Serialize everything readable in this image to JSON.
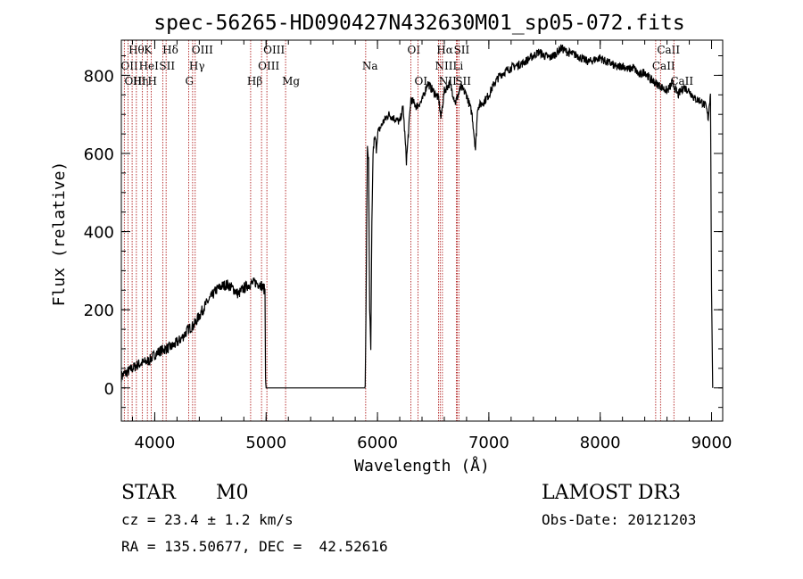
{
  "chart_data": {
    "type": "line",
    "title": "spec-56265-HD090427N432630M01_sp05-072.fits",
    "xlabel": "Wavelength (Å)",
    "ylabel": "Flux (relative)",
    "xlim": [
      3700,
      9100
    ],
    "ylim": [
      -85,
      890
    ],
    "xticks": [
      4000,
      5000,
      6000,
      7000,
      8000,
      9000
    ],
    "yticks": [
      0,
      200,
      400,
      600,
      800
    ],
    "grid": false,
    "series": [
      {
        "x": [
          3700,
          3750,
          3800,
          3850,
          3900,
          3950,
          4000,
          4050,
          4100,
          4150,
          4200,
          4250,
          4300,
          4350,
          4400,
          4450,
          4500,
          4550,
          4600,
          4650,
          4700,
          4750,
          4800,
          4850,
          4900,
          4950,
          4990,
          4995,
          5000,
          5100,
          5200,
          5300,
          5400,
          5500,
          5600,
          5700,
          5800,
          5880,
          5890,
          5900,
          5910,
          5920,
          5930,
          5940,
          5950,
          5960,
          5970,
          5980,
          5990,
          6000,
          6050,
          6100,
          6150,
          6200,
          6230,
          6260,
          6300,
          6350,
          6400,
          6450,
          6500,
          6550,
          6570,
          6600,
          6650,
          6700,
          6750,
          6800,
          6850,
          6880,
          6900,
          6950,
          7000,
          7050,
          7100,
          7150,
          7200,
          7250,
          7300,
          7350,
          7400,
          7450,
          7500,
          7550,
          7600,
          7650,
          7700,
          7750,
          7800,
          7850,
          7900,
          7950,
          8000,
          8050,
          8100,
          8150,
          8200,
          8250,
          8300,
          8350,
          8400,
          8450,
          8500,
          8550,
          8600,
          8650,
          8700,
          8750,
          8800,
          8850,
          8900,
          8950,
          8970,
          8990,
          9000,
          9010
        ],
        "y": [
          30,
          40,
          50,
          60,
          65,
          70,
          85,
          95,
          100,
          105,
          115,
          130,
          150,
          160,
          185,
          210,
          230,
          250,
          260,
          265,
          255,
          240,
          255,
          265,
          270,
          265,
          250,
          40,
          0,
          0,
          0,
          0,
          0,
          0,
          0,
          0,
          0,
          0,
          0,
          300,
          620,
          580,
          200,
          90,
          420,
          600,
          630,
          640,
          610,
          650,
          680,
          700,
          690,
          680,
          720,
          580,
          740,
          720,
          735,
          780,
          760,
          740,
          690,
          760,
          780,
          730,
          770,
          750,
          700,
          610,
          720,
          730,
          750,
          780,
          800,
          810,
          820,
          825,
          830,
          840,
          850,
          860,
          850,
          845,
          855,
          870,
          860,
          855,
          850,
          840,
          835,
          840,
          845,
          835,
          830,
          820,
          825,
          815,
          820,
          800,
          810,
          790,
          780,
          770,
          760,
          780,
          750,
          770,
          760,
          740,
          735,
          720,
          690,
          760,
          250,
          0
        ]
      }
    ],
    "lines": [
      {
        "name": "Hθ",
        "x": 3797,
        "row": 0
      },
      {
        "name": "OII",
        "x": 3727,
        "row": 1
      },
      {
        "name": "OIII",
        "x": 3760,
        "row": 2
      },
      {
        "name": "Hη",
        "x": 3835,
        "row": 2
      },
      {
        "name": "HeI",
        "x": 3889,
        "row": 1
      },
      {
        "name": "K",
        "x": 3934,
        "row": 0
      },
      {
        "name": "H",
        "x": 3968,
        "row": 2
      },
      {
        "name": "SII",
        "x": 4072,
        "row": 1
      },
      {
        "name": "Hδ",
        "x": 4102,
        "row": 0
      },
      {
        "name": "G",
        "x": 4305,
        "row": 2
      },
      {
        "name": "Hγ",
        "x": 4340,
        "row": 1
      },
      {
        "name": "OIII",
        "x": 4363,
        "row": 0
      },
      {
        "name": "Hβ",
        "x": 4861,
        "row": 2
      },
      {
        "name": "OIII",
        "x": 4959,
        "row": 1
      },
      {
        "name": "OIII",
        "x": 5007,
        "row": 0
      },
      {
        "name": "Mg",
        "x": 5175,
        "row": 2
      },
      {
        "name": "Na",
        "x": 5894,
        "row": 1
      },
      {
        "name": "OI",
        "x": 6300,
        "row": 0
      },
      {
        "name": "OI",
        "x": 6364,
        "row": 2
      },
      {
        "name": "NII",
        "x": 6548,
        "row": 1
      },
      {
        "name": "Hα",
        "x": 6563,
        "row": 0
      },
      {
        "name": "NII",
        "x": 6583,
        "row": 2
      },
      {
        "name": "Li",
        "x": 6708,
        "row": 1
      },
      {
        "name": "SII",
        "x": 6717,
        "row": 0
      },
      {
        "name": "SII",
        "x": 6731,
        "row": 2
      },
      {
        "name": "CaII",
        "x": 8498,
        "row": 1
      },
      {
        "name": "CaII",
        "x": 8542,
        "row": 0
      },
      {
        "name": "CaII",
        "x": 8662,
        "row": 2
      }
    ]
  },
  "info": {
    "class": "STAR",
    "subclass": "M0",
    "survey": "LAMOST DR3",
    "cz": "cz = 23.4 ± 1.2 km/s",
    "obs_date": "Obs-Date: 20121203",
    "coords": "RA = 135.50677, DEC =  42.52616"
  }
}
